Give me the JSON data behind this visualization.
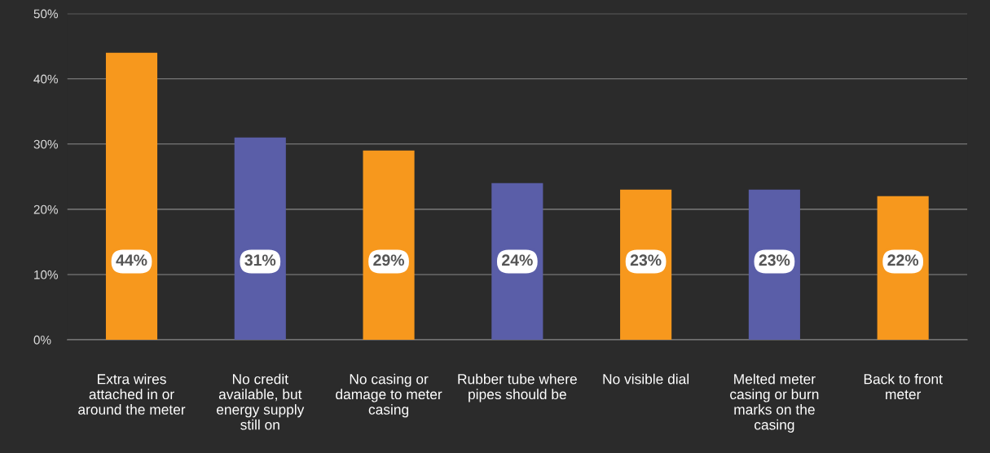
{
  "chart_data": {
    "type": "bar",
    "categories": [
      "Extra wires attached in or around the meter",
      "No credit available, but energy supply still on",
      "No casing or damage to meter casing",
      "Rubber tube where pipes should be",
      "No visible dial",
      "Melted meter casing or burn marks on the casing",
      "Back to front meter"
    ],
    "values": [
      44,
      31,
      29,
      24,
      23,
      23,
      22
    ],
    "colors": [
      "#f7981d",
      "#5a5ea8",
      "#f7981d",
      "#5a5ea8",
      "#f7981d",
      "#5a5ea8",
      "#f7981d"
    ],
    "ylim": [
      0,
      50
    ],
    "yticks": [
      {
        "value": 0,
        "label": "0%"
      },
      {
        "value": 10,
        "label": "10%"
      },
      {
        "value": 20,
        "label": "20%"
      },
      {
        "value": 30,
        "label": "30%"
      },
      {
        "value": 40,
        "label": "40%"
      },
      {
        "value": 50,
        "label": "50%"
      }
    ],
    "value_labels": [
      "44%",
      "31%",
      "29%",
      "24%",
      "23%",
      "23%",
      "22%"
    ],
    "grid": "y"
  }
}
